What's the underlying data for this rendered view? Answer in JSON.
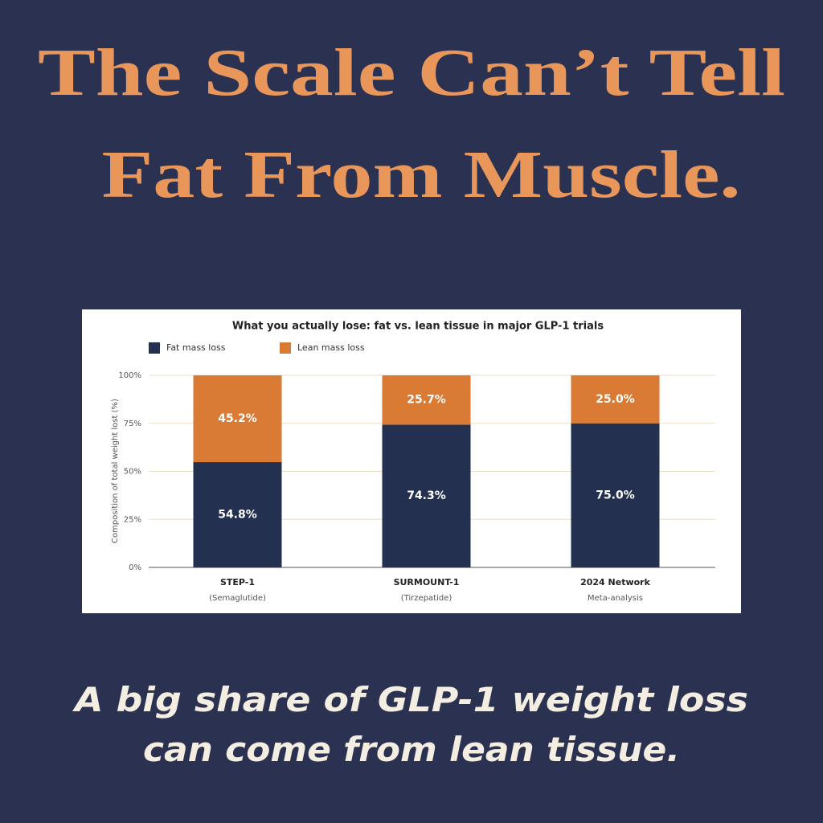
{
  "headline": [
    "The Scale Can’t Tell",
    "Fat From Muscle."
  ],
  "caption": [
    "A big share of GLP-1 weight loss",
    "can come from lean tissue."
  ],
  "chart_data": {
    "type": "stacked_bar",
    "title": "What you actually lose: fat vs. lean tissue in major GLP-1 trials",
    "y_label": "Composition of total weight lost (%)",
    "categories": [
      "STEP-1",
      "SURMOUNT-1",
      "2024 Network"
    ],
    "category_sublabels": [
      "(Semaglutide)",
      "(Tirzepatide)",
      "Meta-analysis"
    ],
    "series": [
      {
        "name": "Fat mass loss",
        "color": "#23304f",
        "values": [
          54.8,
          74.3,
          75.0
        ],
        "value_labels": [
          "54.8%",
          "74.3%",
          "75.0%"
        ]
      },
      {
        "name": "Lean mass loss",
        "color": "#d97a35",
        "values": [
          45.2,
          25.7,
          25.0
        ],
        "value_labels": [
          "45.2%",
          "25.7%",
          "25.0%"
        ]
      }
    ],
    "ylim": [
      0,
      100
    ],
    "yticks": [
      {
        "value": 0,
        "label": "0%"
      },
      {
        "value": 25,
        "label": "25%"
      },
      {
        "value": 50,
        "label": "50%"
      },
      {
        "value": 75,
        "label": "75%"
      },
      {
        "value": 100,
        "label": "100%"
      }
    ],
    "grid": true,
    "legend": "top-left"
  }
}
